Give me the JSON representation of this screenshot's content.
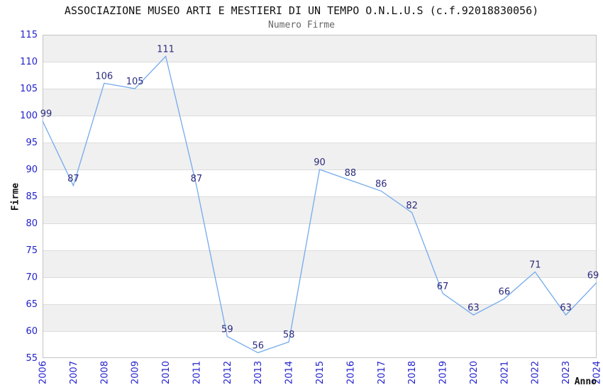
{
  "header": {
    "title": "ASSOCIAZIONE MUSEO ARTI E MESTIERI DI UN TEMPO O.N.L.U.S (c.f.92018830056)",
    "subtitle": "Numero Firme"
  },
  "chart_data": {
    "type": "line",
    "title": "ASSOCIAZIONE MUSEO ARTI E MESTIERI DI UN TEMPO O.N.L.U.S (c.f.92018830056)",
    "subtitle": "Numero Firme",
    "xlabel": "Anno",
    "ylabel": "Firme",
    "x": [
      2006,
      2007,
      2008,
      2009,
      2010,
      2011,
      2012,
      2013,
      2014,
      2015,
      2016,
      2017,
      2018,
      2019,
      2020,
      2021,
      2022,
      2023,
      2024
    ],
    "values": [
      99,
      87,
      106,
      105,
      111,
      87,
      59,
      56,
      58,
      90,
      88,
      86,
      82,
      67,
      63,
      66,
      71,
      63,
      69
    ],
    "ylim": [
      55,
      115
    ],
    "ytick_step": 5,
    "yticks": [
      55,
      60,
      65,
      70,
      75,
      80,
      85,
      90,
      95,
      100,
      105,
      110,
      115
    ],
    "grid": "horizontal-bands",
    "legend": "none",
    "colors": {
      "line": "#74aaec",
      "point_label": "#2b2b7e",
      "tick_label": "#2222cc",
      "band_gray": "#f0f0f0",
      "band_white": "#ffffff",
      "gridline": "#dcdcdc",
      "plot_border": "#c4c4c4",
      "title": "#111111",
      "subtitle": "#666666",
      "axis_title": "#111111"
    }
  }
}
